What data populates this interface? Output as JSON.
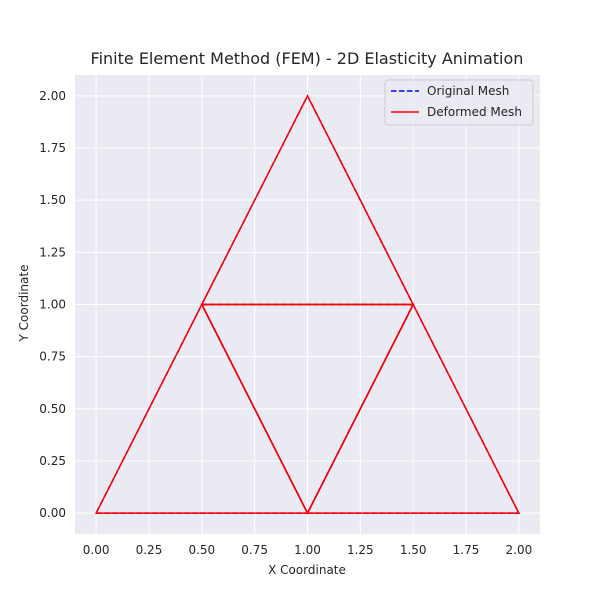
{
  "chart_data": {
    "type": "line",
    "title": "Finite Element Method (FEM) - 2D Elasticity Animation",
    "xlabel": "X Coordinate",
    "ylabel": "Y Coordinate",
    "xlim": [
      -0.1,
      2.1
    ],
    "ylim": [
      -0.1,
      2.1
    ],
    "xticks": [
      "0.00",
      "0.25",
      "0.50",
      "0.75",
      "1.00",
      "1.25",
      "1.50",
      "1.75",
      "2.00"
    ],
    "yticks": [
      "0.00",
      "0.25",
      "0.50",
      "0.75",
      "1.00",
      "1.25",
      "1.50",
      "1.75",
      "2.00"
    ],
    "grid": true,
    "legend_position": "top-right",
    "nodes": [
      [
        0,
        0
      ],
      [
        1,
        0
      ],
      [
        2,
        0
      ],
      [
        0.5,
        1
      ],
      [
        1.5,
        1
      ],
      [
        1,
        2
      ]
    ],
    "elements": [
      [
        0,
        1,
        3
      ],
      [
        1,
        2,
        4
      ],
      [
        3,
        4,
        5
      ],
      [
        1,
        4,
        3
      ]
    ],
    "series": [
      {
        "name": "Original Mesh",
        "style": "dashed",
        "color": "#0000ff",
        "displacement": [
          [
            0,
            0
          ],
          [
            0,
            0
          ],
          [
            0,
            0
          ],
          [
            0,
            0
          ],
          [
            0,
            0
          ],
          [
            0,
            0
          ]
        ]
      },
      {
        "name": "Deformed Mesh",
        "style": "solid",
        "color": "#ff0000",
        "displacement": [
          [
            0,
            0
          ],
          [
            0,
            0
          ],
          [
            0,
            0
          ],
          [
            0,
            0
          ],
          [
            0,
            0
          ],
          [
            0,
            0
          ]
        ]
      }
    ]
  },
  "colors": {
    "plot_background": "#eaeaf2",
    "grid": "#ffffff",
    "text": "#262626"
  }
}
